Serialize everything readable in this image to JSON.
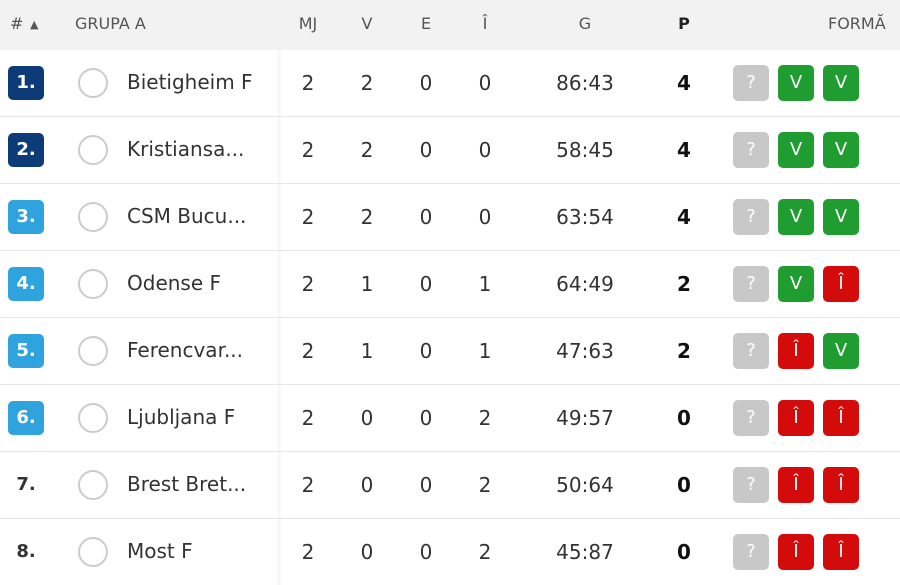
{
  "header": {
    "rank": "#",
    "group": "GRUPA A",
    "columns": [
      "MJ",
      "V",
      "E",
      "Î",
      "G",
      "P"
    ],
    "form": "FORMĂ"
  },
  "form_colors": {
    "?": "#c8c8c8",
    "V": "#1f9d31",
    "Î": "#d40b0b"
  },
  "rows": [
    {
      "rank": "1.",
      "badge_color": "#0c3b78",
      "team": "Bietigheim F",
      "cells": [
        2,
        2,
        0,
        0,
        "86:43",
        4
      ],
      "form": [
        "?",
        "V",
        "V"
      ]
    },
    {
      "rank": "2.",
      "badge_color": "#0c3b78",
      "team": "Kristiansa...",
      "cells": [
        2,
        2,
        0,
        0,
        "58:45",
        4
      ],
      "form": [
        "?",
        "V",
        "V"
      ]
    },
    {
      "rank": "3.",
      "badge_color": "#2ea3dd",
      "team": "CSM Bucu...",
      "cells": [
        2,
        2,
        0,
        0,
        "63:54",
        4
      ],
      "form": [
        "?",
        "V",
        "V"
      ]
    },
    {
      "rank": "4.",
      "badge_color": "#2ea3dd",
      "team": "Odense F",
      "cells": [
        2,
        1,
        0,
        1,
        "64:49",
        2
      ],
      "form": [
        "?",
        "V",
        "Î"
      ]
    },
    {
      "rank": "5.",
      "badge_color": "#2ea3dd",
      "team": "Ferencvar...",
      "cells": [
        2,
        1,
        0,
        1,
        "47:63",
        2
      ],
      "form": [
        "?",
        "Î",
        "V"
      ]
    },
    {
      "rank": "6.",
      "badge_color": "#2ea3dd",
      "team": "Ljubljana F",
      "cells": [
        2,
        0,
        0,
        2,
        "49:57",
        0
      ],
      "form": [
        "?",
        "Î",
        "Î"
      ]
    },
    {
      "rank": "7.",
      "badge_color": null,
      "team": "Brest Bret...",
      "cells": [
        2,
        0,
        0,
        2,
        "50:64",
        0
      ],
      "form": [
        "?",
        "Î",
        "Î"
      ]
    },
    {
      "rank": "8.",
      "badge_color": null,
      "team": "Most F",
      "cells": [
        2,
        0,
        0,
        2,
        "45:87",
        0
      ],
      "form": [
        "?",
        "Î",
        "Î"
      ]
    }
  ]
}
